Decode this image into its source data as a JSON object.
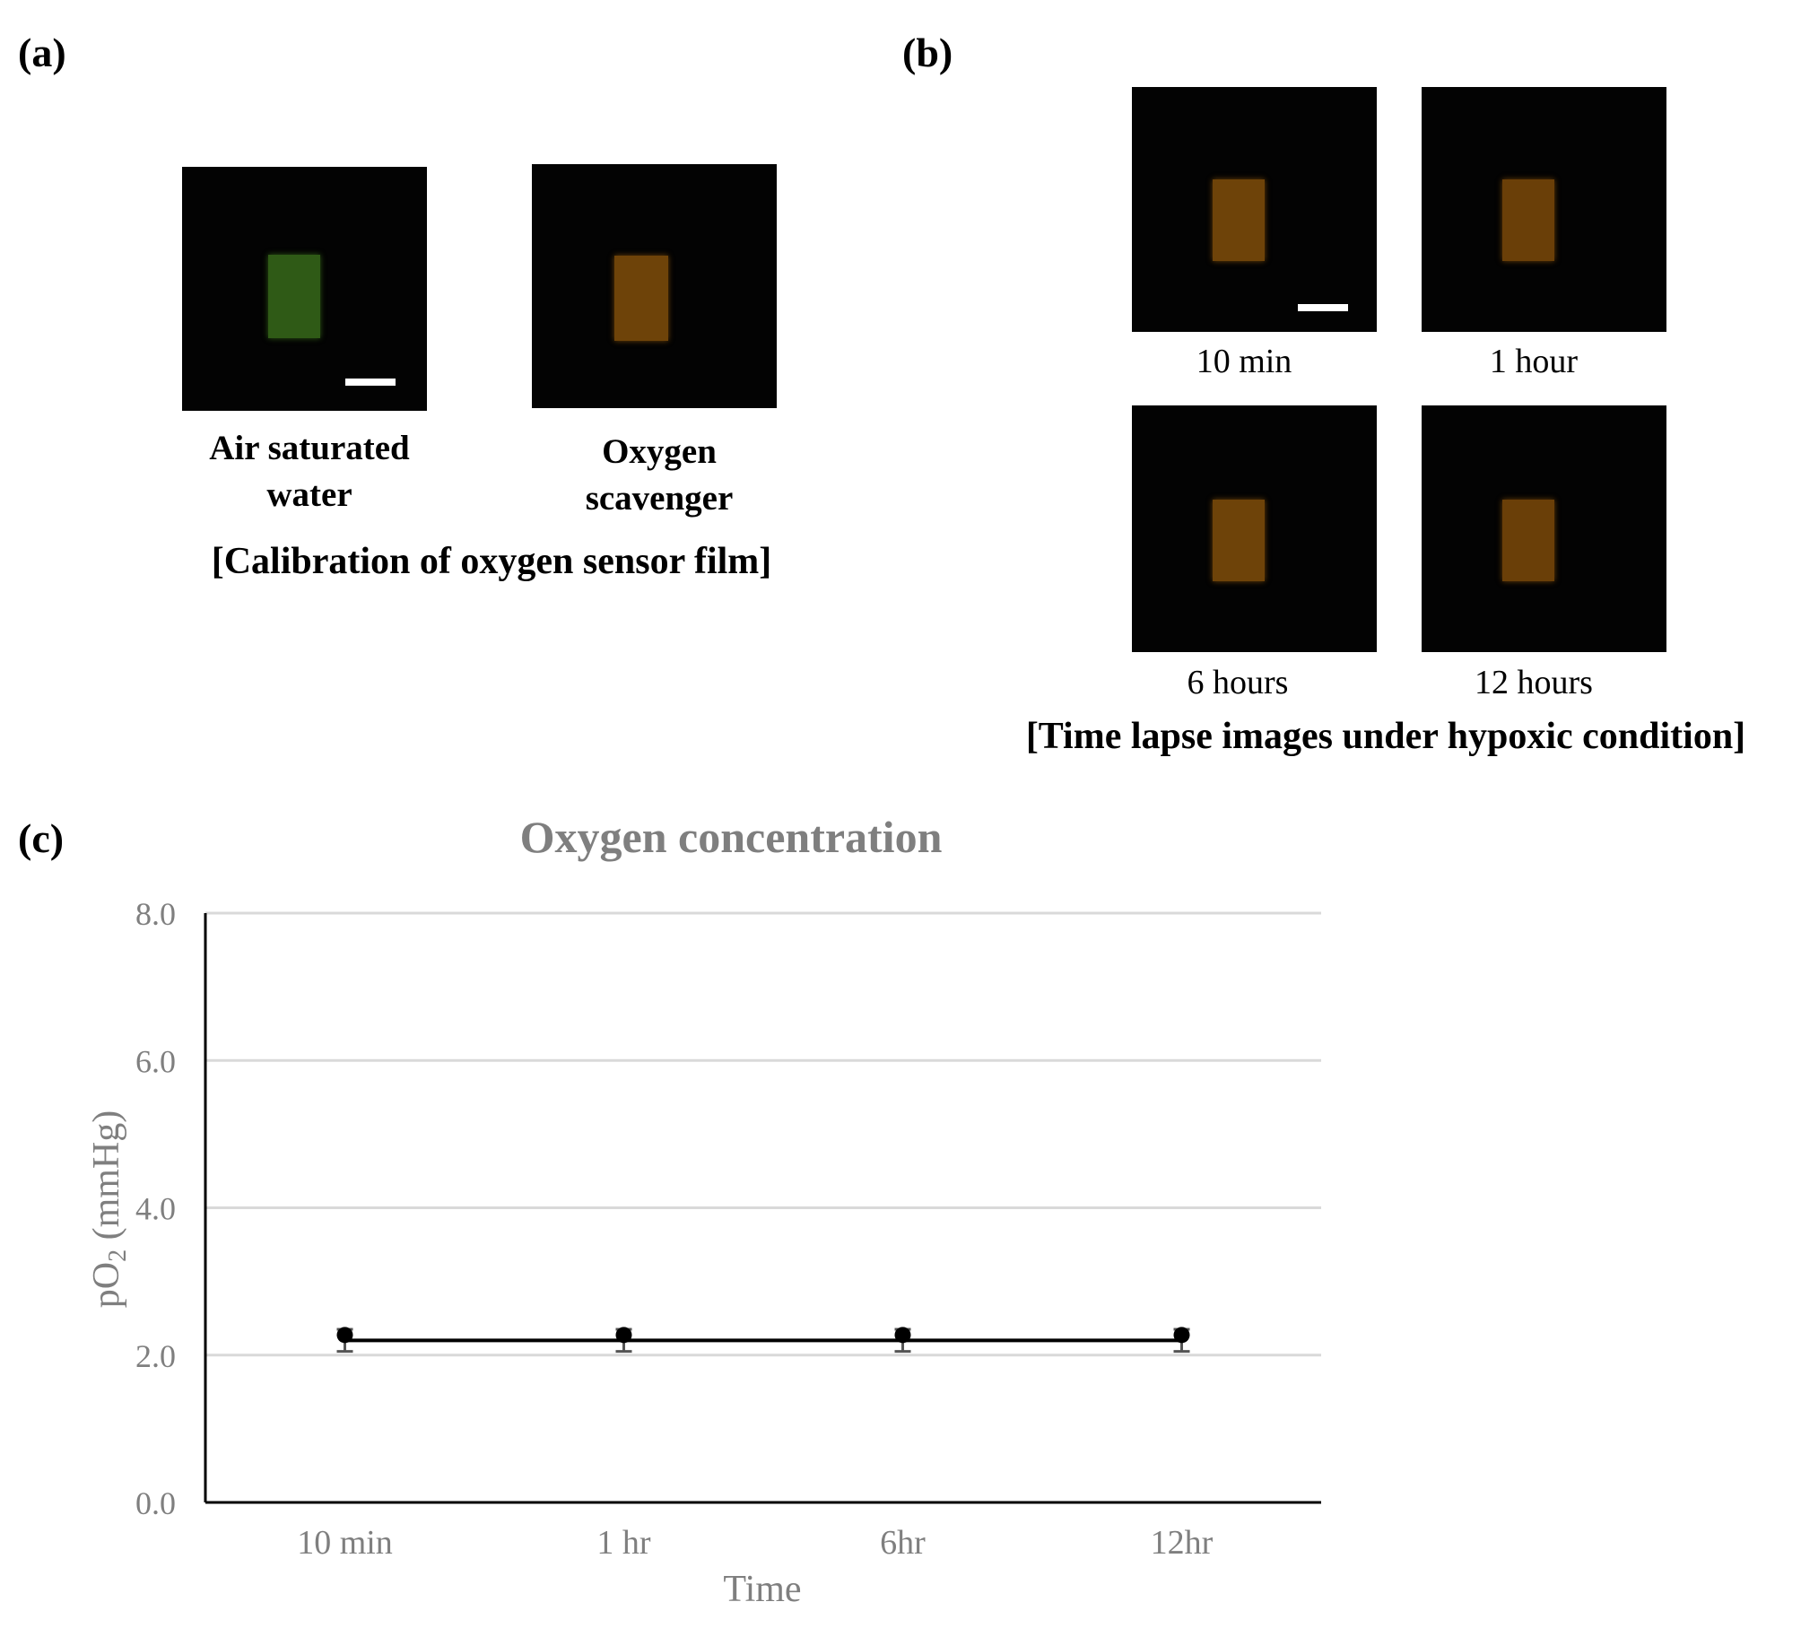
{
  "panel_a": {
    "label": "(a)",
    "images": [
      {
        "caption_line1": "Air saturated",
        "caption_line2": "water",
        "film_color": "#2f5a16",
        "scale_bar": true
      },
      {
        "caption_line1": "Oxygen",
        "caption_line2": "scavenger",
        "film_color": "#6e4309",
        "scale_bar": false
      }
    ],
    "title": "[Calibration of oxygen sensor film]"
  },
  "panel_b": {
    "label": "(b)",
    "images": [
      {
        "caption": "10 min",
        "film_color": "#6e4309",
        "scale_bar": true
      },
      {
        "caption": "1 hour",
        "film_color": "#6a3f08",
        "scale_bar": false
      },
      {
        "caption": "6 hours",
        "film_color": "#6e4309",
        "scale_bar": false
      },
      {
        "caption": "12 hours",
        "film_color": "#6a3f08",
        "scale_bar": false
      }
    ],
    "title": "[Time lapse images under hypoxic condition]"
  },
  "panel_c": {
    "label": "(c)"
  },
  "chart_data": {
    "type": "line",
    "title": "Oxygen concentration",
    "xlabel": "Time",
    "ylabel_main": "pO",
    "ylabel_sub": "2",
    "ylabel_unit": " (mmHg)",
    "categories": [
      "10 min",
      "1 hr",
      "6hr",
      "12hr"
    ],
    "series": [
      {
        "values": [
          2.2,
          2.2,
          2.2,
          2.2
        ],
        "error": [
          0.15,
          0.15,
          0.15,
          0.15
        ]
      }
    ],
    "ylim": [
      0,
      8
    ],
    "yticks": [
      "0.0",
      "2.0",
      "4.0",
      "6.0",
      "8.0"
    ],
    "grid": true,
    "colors": {
      "line": "#000000",
      "axis_text": "#7f7f7f",
      "grid": "#d9d9d9",
      "title": "#7f7f7f"
    }
  }
}
